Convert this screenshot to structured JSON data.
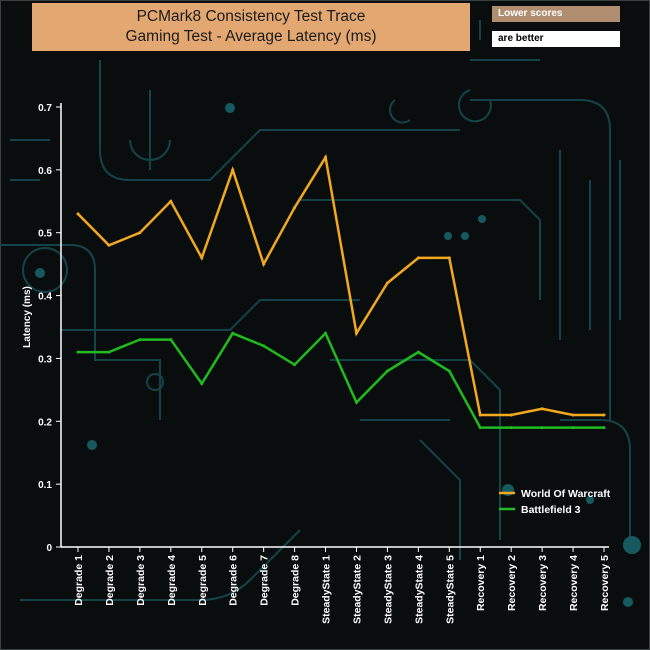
{
  "title": {
    "line1": "PCMark8 Consistency Test Trace",
    "line2": "Gaming Test -  Average Latency (ms)"
  },
  "note": {
    "top": "Lower scores",
    "bottom": "are better"
  },
  "colors": {
    "series1": "#f2a91f",
    "series2": "#1fbb1f",
    "axis": "#ffffff",
    "background": "#0a0d0e"
  },
  "chart_data": {
    "type": "line",
    "title": "PCMark8 Consistency Test Trace - Gaming Test - Average Latency (ms)",
    "xlabel": "",
    "ylabel": "Latency (ms)",
    "ylim": [
      0,
      0.7
    ],
    "yticks": [
      "0",
      "0.1",
      "0.2",
      "0.3",
      "0.4",
      "0.5",
      "0.6",
      "0.7"
    ],
    "categories": [
      "Degrade 1",
      "Degrade 2",
      "Degrade 3",
      "Degrade 4",
      "Degrade 5",
      "Degrade 6",
      "Degrade 7",
      "Degrade 8",
      "SteadyState 1",
      "SteadyState 2",
      "SteadyState 3",
      "SteadyState 4",
      "SteadyState 5",
      "Recovery 1",
      "Recovery 2",
      "Recovery 3",
      "Recovery 4",
      "Recovery 5"
    ],
    "series": [
      {
        "name": "World Of Warcraft",
        "values": [
          0.53,
          0.48,
          0.5,
          0.55,
          0.46,
          0.6,
          0.45,
          0.54,
          0.62,
          0.34,
          0.42,
          0.46,
          0.46,
          0.21,
          0.21,
          0.22,
          0.21,
          0.21
        ]
      },
      {
        "name": "Battlefield 3",
        "values": [
          0.31,
          0.31,
          0.33,
          0.33,
          0.26,
          0.34,
          0.32,
          0.29,
          0.34,
          0.23,
          0.28,
          0.31,
          0.28,
          0.19,
          0.19,
          0.19,
          0.19,
          0.19
        ]
      }
    ],
    "legend": "right"
  }
}
